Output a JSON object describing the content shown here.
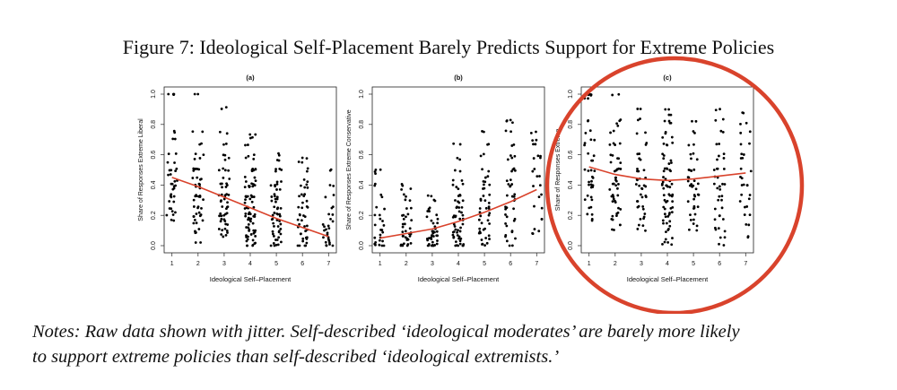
{
  "figure": {
    "title": "Figure 7: Ideological Self-Placement Barely Predicts Support for Extreme Policies",
    "notes_line1": "Notes: Raw data shown with jitter. Self-described ‘ideological moderates’ are barely more likely",
    "notes_line2": "to support extreme policies than self-described ‘ideological extremists.’"
  },
  "highlight_color": "#d9432c",
  "chart_data": [
    {
      "type": "scatter",
      "title": "(a)",
      "xlabel": "Ideological Self–Placement",
      "ylabel": "Share of Responses Extreme Liberal",
      "xticks": [
        1,
        2,
        3,
        4,
        5,
        6,
        7
      ],
      "yticks": [
        "0.0",
        "0.2",
        "0.4",
        "0.6",
        "0.8",
        "1.0"
      ],
      "xlim": [
        0.7,
        7.3
      ],
      "ylim": [
        0,
        1
      ],
      "point_color": "#000000",
      "fit_color": "#d9432c",
      "points_by_x": {
        "1": [
          1.0,
          1.0,
          0.75,
          0.71,
          0.6,
          0.55,
          0.5,
          0.5,
          0.47,
          0.43,
          0.4,
          0.4,
          0.38,
          0.33,
          0.33,
          0.3,
          0.25,
          0.22,
          0.2,
          0.17
        ],
        "2": [
          1.0,
          0.75,
          0.67,
          0.6,
          0.57,
          0.5,
          0.5,
          0.5,
          0.45,
          0.43,
          0.4,
          0.4,
          0.38,
          0.33,
          0.33,
          0.33,
          0.3,
          0.25,
          0.25,
          0.22,
          0.2,
          0.2,
          0.17,
          0.14,
          0.1,
          0.08,
          0.02
        ],
        "3": [
          0.91,
          0.75,
          0.67,
          0.6,
          0.57,
          0.5,
          0.5,
          0.45,
          0.4,
          0.4,
          0.38,
          0.33,
          0.33,
          0.33,
          0.3,
          0.29,
          0.25,
          0.25,
          0.22,
          0.2,
          0.2,
          0.17,
          0.17,
          0.14,
          0.11,
          0.1,
          0.08,
          0.06
        ],
        "4": [
          0.73,
          0.71,
          0.67,
          0.6,
          0.57,
          0.5,
          0.5,
          0.5,
          0.45,
          0.43,
          0.4,
          0.4,
          0.4,
          0.38,
          0.33,
          0.33,
          0.33,
          0.33,
          0.3,
          0.29,
          0.25,
          0.25,
          0.25,
          0.22,
          0.2,
          0.2,
          0.2,
          0.18,
          0.17,
          0.17,
          0.14,
          0.12,
          0.1,
          0.1,
          0.08,
          0.07,
          0.06,
          0.05,
          0.04,
          0.02,
          0.0,
          0.0
        ],
        "5": [
          0.6,
          0.57,
          0.5,
          0.5,
          0.43,
          0.4,
          0.4,
          0.38,
          0.33,
          0.33,
          0.3,
          0.29,
          0.25,
          0.25,
          0.22,
          0.2,
          0.2,
          0.17,
          0.17,
          0.14,
          0.12,
          0.1,
          0.1,
          0.08,
          0.06,
          0.04,
          0.02,
          0.0,
          0.0
        ],
        "6": [
          0.57,
          0.55,
          0.5,
          0.43,
          0.4,
          0.38,
          0.33,
          0.33,
          0.29,
          0.25,
          0.25,
          0.2,
          0.2,
          0.17,
          0.14,
          0.12,
          0.1,
          0.08,
          0.06,
          0.04,
          0.02,
          0.0,
          0.0
        ],
        "7": [
          0.5,
          0.4,
          0.33,
          0.25,
          0.2,
          0.17,
          0.14,
          0.12,
          0.1,
          0.08,
          0.06,
          0.04,
          0.02,
          0.0,
          0.0
        ]
      },
      "fit_x": [
        1,
        2,
        3,
        4,
        5,
        6,
        7
      ],
      "fit_y": [
        0.45,
        0.39,
        0.32,
        0.25,
        0.18,
        0.12,
        0.06
      ]
    },
    {
      "type": "scatter",
      "title": "(b)",
      "xlabel": "Ideological Self–Placement",
      "ylabel": "Share of Responses Extreme Conservative",
      "xticks": [
        1,
        2,
        3,
        4,
        5,
        6,
        7
      ],
      "yticks": [
        "0.0",
        "0.2",
        "0.4",
        "0.6",
        "0.8",
        "1.0"
      ],
      "xlim": [
        0.7,
        7.3
      ],
      "ylim": [
        0,
        1
      ],
      "point_color": "#000000",
      "fit_color": "#d9432c",
      "points_by_x": {
        "1": [
          0.5,
          0.48,
          0.4,
          0.33,
          0.25,
          0.2,
          0.17,
          0.14,
          0.1,
          0.08,
          0.06,
          0.04,
          0.02,
          0.0,
          0.0
        ],
        "2": [
          0.4,
          0.38,
          0.33,
          0.3,
          0.25,
          0.2,
          0.2,
          0.17,
          0.14,
          0.12,
          0.1,
          0.08,
          0.07,
          0.06,
          0.05,
          0.04,
          0.02,
          0.0,
          0.0,
          0.0
        ],
        "3": [
          0.33,
          0.3,
          0.25,
          0.22,
          0.2,
          0.17,
          0.14,
          0.12,
          0.1,
          0.1,
          0.08,
          0.07,
          0.06,
          0.05,
          0.04,
          0.03,
          0.02,
          0.0,
          0.0,
          0.0,
          0.0
        ],
        "4": [
          0.67,
          0.57,
          0.5,
          0.43,
          0.4,
          0.38,
          0.33,
          0.33,
          0.3,
          0.29,
          0.25,
          0.25,
          0.22,
          0.2,
          0.2,
          0.18,
          0.17,
          0.14,
          0.12,
          0.1,
          0.1,
          0.08,
          0.07,
          0.06,
          0.05,
          0.04,
          0.02,
          0.0,
          0.0,
          0.0
        ],
        "5": [
          0.75,
          0.67,
          0.6,
          0.5,
          0.45,
          0.43,
          0.4,
          0.38,
          0.33,
          0.3,
          0.29,
          0.25,
          0.25,
          0.22,
          0.2,
          0.17,
          0.14,
          0.12,
          0.1,
          0.08,
          0.06,
          0.04,
          0.02,
          0.0
        ],
        "6": [
          0.83,
          0.82,
          0.75,
          0.67,
          0.6,
          0.57,
          0.5,
          0.5,
          0.43,
          0.4,
          0.4,
          0.33,
          0.33,
          0.3,
          0.25,
          0.25,
          0.2,
          0.17,
          0.14,
          0.1,
          0.06,
          0.04,
          0.0
        ],
        "7": [
          0.75,
          0.7,
          0.67,
          0.6,
          0.57,
          0.5,
          0.45,
          0.4,
          0.33,
          0.25,
          0.17,
          0.1,
          0.08
        ]
      },
      "fit_x": [
        1,
        2,
        3,
        4,
        5,
        6,
        7
      ],
      "fit_y": [
        0.05,
        0.08,
        0.11,
        0.16,
        0.22,
        0.29,
        0.37
      ]
    },
    {
      "type": "scatter",
      "title": "(c)",
      "xlabel": "Ideological Self–Placement",
      "ylabel": "Share of Responses Extreme",
      "xticks": [
        1,
        2,
        3,
        4,
        5,
        6,
        7
      ],
      "yticks": [
        "0.0",
        "0.2",
        "0.4",
        "0.6",
        "0.8",
        "1.0"
      ],
      "xlim": [
        0.7,
        7.3
      ],
      "ylim": [
        0,
        1
      ],
      "point_color": "#000000",
      "fit_color": "#d9432c",
      "points_by_x": {
        "1": [
          1.0,
          1.0,
          0.97,
          0.83,
          0.75,
          0.7,
          0.67,
          0.6,
          0.57,
          0.5,
          0.5,
          0.45,
          0.43,
          0.4,
          0.4,
          0.38,
          0.33,
          0.3,
          0.25,
          0.2,
          0.17
        ],
        "2": [
          1.0,
          0.83,
          0.8,
          0.75,
          0.67,
          0.67,
          0.6,
          0.57,
          0.55,
          0.5,
          0.5,
          0.5,
          0.45,
          0.43,
          0.4,
          0.4,
          0.38,
          0.33,
          0.33,
          0.3,
          0.29,
          0.25,
          0.22,
          0.2,
          0.17,
          0.14,
          0.1
        ],
        "3": [
          0.91,
          0.83,
          0.75,
          0.67,
          0.6,
          0.57,
          0.5,
          0.5,
          0.45,
          0.43,
          0.4,
          0.4,
          0.38,
          0.33,
          0.33,
          0.3,
          0.25,
          0.25,
          0.2,
          0.17,
          0.14,
          0.1
        ],
        "4": [
          0.9,
          0.86,
          0.83,
          0.8,
          0.75,
          0.71,
          0.67,
          0.67,
          0.6,
          0.57,
          0.55,
          0.5,
          0.5,
          0.5,
          0.45,
          0.43,
          0.4,
          0.4,
          0.4,
          0.38,
          0.33,
          0.33,
          0.33,
          0.3,
          0.29,
          0.25,
          0.25,
          0.22,
          0.2,
          0.2,
          0.17,
          0.14,
          0.12,
          0.1,
          0.05,
          0.02,
          0.0
        ],
        "5": [
          0.83,
          0.75,
          0.67,
          0.6,
          0.57,
          0.5,
          0.5,
          0.45,
          0.43,
          0.4,
          0.4,
          0.38,
          0.33,
          0.33,
          0.3,
          0.25,
          0.25,
          0.2,
          0.17,
          0.14,
          0.1
        ],
        "6": [
          0.9,
          0.83,
          0.75,
          0.67,
          0.6,
          0.57,
          0.5,
          0.5,
          0.45,
          0.4,
          0.4,
          0.38,
          0.33,
          0.3,
          0.25,
          0.2,
          0.17,
          0.12,
          0.1,
          0.06,
          0.0
        ],
        "7": [
          0.88,
          0.8,
          0.75,
          0.67,
          0.6,
          0.57,
          0.5,
          0.45,
          0.4,
          0.4,
          0.33,
          0.3,
          0.25,
          0.2,
          0.14,
          0.06
        ]
      },
      "fit_x": [
        1,
        2,
        3,
        4,
        5,
        6,
        7
      ],
      "fit_y": [
        0.52,
        0.47,
        0.44,
        0.43,
        0.44,
        0.46,
        0.48
      ]
    }
  ]
}
